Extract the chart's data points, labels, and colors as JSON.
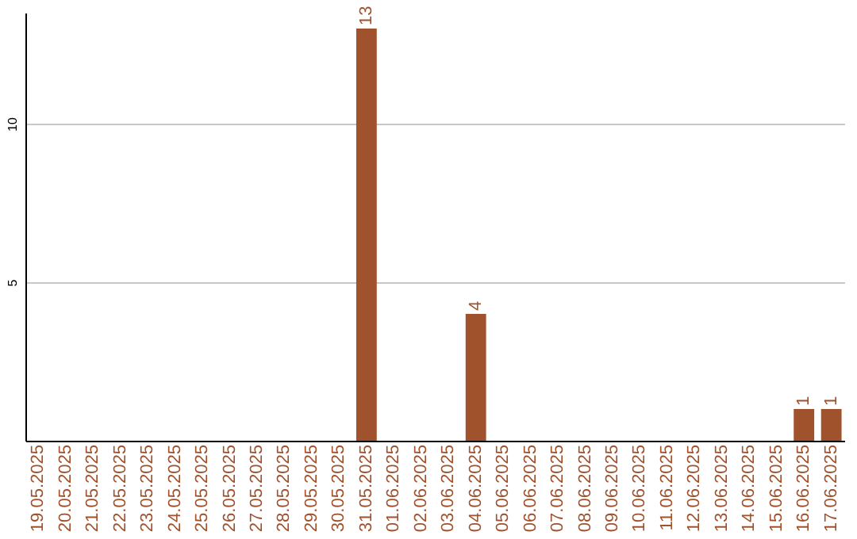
{
  "chart_data": {
    "type": "bar",
    "categories": [
      "19.05.2025",
      "20.05.2025",
      "21.05.2025",
      "22.05.2025",
      "23.05.2025",
      "24.05.2025",
      "25.05.2025",
      "26.05.2025",
      "27.05.2025",
      "28.05.2025",
      "29.05.2025",
      "30.05.2025",
      "31.05.2025",
      "01.06.2025",
      "02.06.2025",
      "03.06.2025",
      "04.06.2025",
      "05.06.2025",
      "06.06.2025",
      "07.06.2025",
      "08.06.2025",
      "09.06.2025",
      "10.06.2025",
      "11.06.2025",
      "12.06.2025",
      "13.06.2025",
      "14.06.2025",
      "15.06.2025",
      "16.06.2025",
      "17.06.2025"
    ],
    "values": [
      0,
      0,
      0,
      0,
      0,
      0,
      0,
      0,
      0,
      0,
      0,
      0,
      13,
      0,
      0,
      0,
      4,
      0,
      0,
      0,
      0,
      0,
      0,
      0,
      0,
      0,
      0,
      0,
      1,
      1
    ],
    "value_labels": [
      null,
      null,
      null,
      null,
      null,
      null,
      null,
      null,
      null,
      null,
      null,
      null,
      "13",
      null,
      null,
      null,
      "4",
      null,
      null,
      null,
      null,
      null,
      null,
      null,
      null,
      null,
      null,
      null,
      "1",
      "1"
    ],
    "color": "#a0522d",
    "ylim": [
      0,
      13.5
    ],
    "yticks": [
      5,
      10
    ],
    "grid": "y"
  }
}
